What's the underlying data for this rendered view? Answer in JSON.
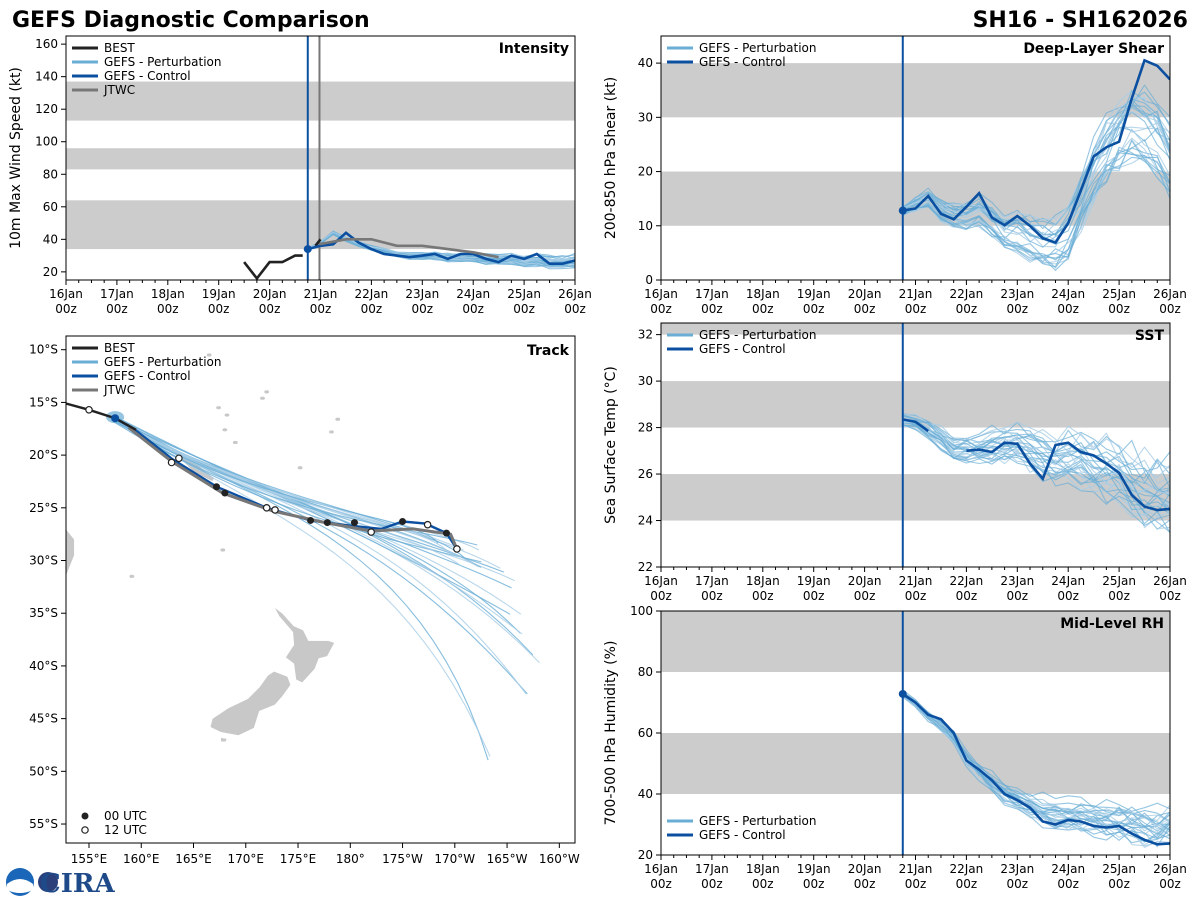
{
  "header": {
    "title": "GEFS Diagnostic Comparison",
    "storm_id": "SH16 - SH162026"
  },
  "colors": {
    "best": "#222222",
    "perturbation": "#6aaed6",
    "perturbation_light": "#a8cde6",
    "control": "#0b4fa0",
    "jtwc": "#777777",
    "shade": "#cccccc",
    "land": "#c8c8c8"
  },
  "logo": {
    "text": "CIRA",
    "icon": "noaa-logo-icon"
  },
  "chart_data": [
    {
      "id": "intensity",
      "type": "line",
      "title": "Intensity",
      "ylabel": "10m Max Wind Speed (kt)",
      "x_labels": [
        "16Jan",
        "17Jan",
        "18Jan",
        "19Jan",
        "20Jan",
        "21Jan",
        "22Jan",
        "23Jan",
        "24Jan",
        "25Jan",
        "26Jan"
      ],
      "x_sublabel": "00z",
      "xlim": [
        0,
        10
      ],
      "ylim": [
        15,
        165
      ],
      "yticks": [
        20,
        40,
        60,
        80,
        100,
        120,
        140,
        160
      ],
      "bands": [
        [
          34,
          64
        ],
        [
          83,
          96
        ],
        [
          113,
          137
        ]
      ],
      "init_line": 4.75,
      "init_line2": 4.98,
      "init_value": 34,
      "legend": [
        "BEST",
        "GEFS - Perturbation",
        "GEFS - Control",
        "JTWC"
      ],
      "series": [
        {
          "name": "BEST",
          "x": [
            3.5,
            3.75,
            4.0,
            4.25,
            4.5,
            4.65
          ],
          "y": [
            26,
            16,
            26,
            26,
            30,
            30
          ]
        },
        {
          "name": "BEST-2",
          "x": [
            4.9,
            5.0
          ],
          "y": [
            36,
            40
          ]
        },
        {
          "name": "GEFS - Control",
          "x": [
            4.75,
            5.0,
            5.25,
            5.5,
            5.75,
            6.0,
            6.25,
            6.5,
            6.75,
            7.0,
            7.25,
            7.5,
            7.75,
            8.0,
            8.25,
            8.5,
            8.75,
            9.0,
            9.25,
            9.5,
            9.75,
            10.0
          ],
          "y": [
            34,
            36,
            37,
            44,
            38,
            34,
            31,
            30,
            29,
            30,
            31,
            28,
            31,
            31,
            28,
            26,
            30,
            28,
            31,
            25,
            25,
            27
          ]
        },
        {
          "name": "JTWC",
          "x": [
            4.98,
            5.5,
            6.0,
            6.5,
            7.0,
            7.5,
            8.0,
            8.5
          ],
          "y": [
            37,
            40,
            40,
            36,
            36,
            34,
            32,
            29
          ]
        }
      ],
      "perturbation_base": [
        34,
        38,
        44,
        40,
        37,
        35,
        33,
        31,
        30,
        30,
        30,
        29,
        29,
        29,
        28,
        28,
        28,
        27,
        27,
        26,
        26,
        27
      ],
      "perturbation_spread": 6
    },
    {
      "id": "shear",
      "type": "line",
      "title": "Deep-Layer Shear",
      "ylabel": "200-850 hPa Shear (kt)",
      "x_labels": [
        "16Jan",
        "17Jan",
        "18Jan",
        "19Jan",
        "20Jan",
        "21Jan",
        "22Jan",
        "23Jan",
        "24Jan",
        "25Jan",
        "26Jan"
      ],
      "x_sublabel": "00z",
      "xlim": [
        0,
        10
      ],
      "ylim": [
        0,
        45
      ],
      "yticks": [
        0,
        10,
        20,
        30,
        40
      ],
      "bands": [
        [
          10,
          20
        ],
        [
          30,
          40
        ]
      ],
      "init_line": 4.75,
      "init_value": 12.8,
      "legend": [
        "GEFS - Perturbation",
        "GEFS - Control"
      ],
      "series": [
        {
          "name": "GEFS - Control",
          "x": [
            4.75,
            5.0,
            5.25,
            5.5,
            5.75,
            6.0,
            6.25,
            6.5,
            6.75,
            7.0,
            7.25,
            7.5,
            7.75,
            8.0,
            8.25,
            8.5,
            8.75,
            9.0,
            9.25,
            9.5,
            9.75,
            10.0
          ],
          "y": [
            12.8,
            13.2,
            15.5,
            12.2,
            11.2,
            13.5,
            16.0,
            11.5,
            10.1,
            11.8,
            10.0,
            7.7,
            6.9,
            10.5,
            16.5,
            22.8,
            24.5,
            25.5,
            33.5,
            40.5,
            39.5,
            37.0
          ]
        }
      ],
      "perturbation_base": [
        12.8,
        14,
        15,
        13,
        12,
        12,
        13,
        11,
        9,
        9,
        8,
        7,
        7,
        9,
        14,
        20,
        24,
        27,
        29,
        28,
        26,
        22
      ],
      "perturbation_spread": 10
    },
    {
      "id": "sst",
      "type": "line",
      "title": "SST",
      "ylabel": "Sea Surface Temp (°C)",
      "x_labels": [
        "16Jan",
        "17Jan",
        "18Jan",
        "19Jan",
        "20Jan",
        "21Jan",
        "22Jan",
        "23Jan",
        "24Jan",
        "25Jan",
        "26Jan"
      ],
      "x_sublabel": "00z",
      "xlim": [
        0,
        10
      ],
      "ylim": [
        22,
        32.5
      ],
      "yticks": [
        22,
        24,
        26,
        28,
        30,
        32
      ],
      "bands": [
        [
          24,
          26
        ],
        [
          28,
          30
        ],
        [
          32,
          34
        ]
      ],
      "init_line": 4.75,
      "legend": [
        "GEFS - Perturbation",
        "GEFS - Control"
      ],
      "series": [
        {
          "name": "GEFS - Control",
          "x": [
            4.75,
            5.0,
            5.25
          ],
          "y": [
            28.35,
            28.25,
            27.85
          ]
        },
        {
          "name": "GEFS - Control-2",
          "x": [
            6.0,
            6.25,
            6.5,
            6.75,
            7.0,
            7.25,
            7.5,
            7.75,
            8.0,
            8.25,
            8.5,
            8.75,
            9.0,
            9.25,
            9.5,
            9.75,
            10.0
          ],
          "y": [
            27.0,
            27.05,
            26.95,
            27.35,
            27.3,
            26.45,
            25.8,
            27.25,
            27.35,
            26.95,
            26.8,
            26.45,
            26.05,
            25.1,
            24.6,
            24.45,
            24.5
          ]
        }
      ],
      "perturbation_base": [
        28.3,
        28.2,
        27.9,
        27.5,
        27.0,
        27.0,
        27.0,
        27.1,
        27.2,
        27.2,
        27.0,
        26.8,
        26.6,
        26.6,
        26.5,
        26.3,
        26.1,
        25.8,
        25.5,
        25.2,
        25.0,
        24.9
      ],
      "perturbation_spread": 2.6
    },
    {
      "id": "rh",
      "type": "line",
      "title": "Mid-Level RH",
      "ylabel": "700-500 hPa Humidity (%)",
      "x_labels": [
        "16Jan",
        "17Jan",
        "18Jan",
        "19Jan",
        "20Jan",
        "21Jan",
        "22Jan",
        "23Jan",
        "24Jan",
        "25Jan",
        "26Jan"
      ],
      "x_sublabel": "00z",
      "xlim": [
        0,
        10
      ],
      "ylim": [
        20,
        100
      ],
      "yticks": [
        20,
        40,
        60,
        80,
        100
      ],
      "bands": [
        [
          40,
          60
        ],
        [
          80,
          100
        ]
      ],
      "init_line": 4.75,
      "init_value": 72.8,
      "legend": [
        "GEFS - Perturbation",
        "GEFS - Control"
      ],
      "series": [
        {
          "name": "GEFS - Control",
          "x": [
            4.75,
            5.0,
            5.25,
            5.5,
            5.75,
            6.0,
            6.25,
            6.5,
            6.75,
            7.0,
            7.25,
            7.5,
            7.75,
            8.0,
            8.25,
            8.5,
            8.75,
            9.0,
            9.25,
            9.5,
            9.75,
            10.0
          ],
          "y": [
            72.8,
            70,
            66,
            64.5,
            60,
            51,
            48,
            44.5,
            40,
            38,
            35.5,
            31,
            30,
            31.5,
            31,
            29.5,
            29,
            29.5,
            27,
            25,
            23.5,
            23.8
          ]
        }
      ],
      "perturbation_base": [
        72.8,
        70,
        66,
        63,
        59,
        52,
        48,
        45,
        41,
        39,
        37,
        35,
        34,
        34,
        34,
        33,
        32,
        32,
        31,
        30,
        30,
        31
      ],
      "perturbation_spread": 12
    },
    {
      "id": "track",
      "type": "scatter",
      "title": "Track",
      "x_ticks": [
        "155°E",
        "160°E",
        "165°E",
        "170°E",
        "175°E",
        "180°",
        "175°W",
        "170°W",
        "165°W",
        "160°W"
      ],
      "x_tick_lons": [
        155,
        160,
        165,
        170,
        175,
        180,
        185,
        190,
        195,
        200
      ],
      "y_ticks": [
        "10°S",
        "15°S",
        "20°S",
        "25°S",
        "30°S",
        "35°S",
        "40°S",
        "45°S",
        "50°S",
        "55°S"
      ],
      "y_tick_lats": [
        -10,
        -15,
        -20,
        -25,
        -30,
        -35,
        -40,
        -45,
        -50,
        -55
      ],
      "xlim": [
        152.8,
        201.5
      ],
      "ylim": [
        -56.8,
        -8.7
      ],
      "legend": [
        "BEST",
        "GEFS - Perturbation",
        "GEFS - Control",
        "JTWC"
      ],
      "marker_legend": [
        "00 UTC",
        "12 UTC"
      ],
      "best_track": {
        "lon": [
          152.8,
          155.0,
          157.5,
          159.5
        ],
        "lat": [
          -15.1,
          -15.7,
          -16.5,
          -17.6
        ]
      },
      "control_track": {
        "lon": [
          157.5,
          159.4,
          163.0,
          167.2,
          172.0,
          176.2,
          180.0,
          183.0,
          185.0,
          187.2,
          189.2,
          190.2
        ],
        "lat": [
          -16.5,
          -17.6,
          -20.4,
          -23.0,
          -25.0,
          -26.2,
          -26.7,
          -27.0,
          -26.3,
          -26.5,
          -27.4,
          -28.9
        ]
      },
      "jtwc_track": {
        "lon": [
          158.8,
          162.9,
          167.8,
          172.6,
          177.6,
          182.0,
          186.0,
          189.6,
          190.2
        ],
        "lat": [
          -17.4,
          -20.6,
          -23.6,
          -25.3,
          -26.4,
          -27.2,
          -27.0,
          -27.5,
          -28.9
        ]
      },
      "markers_00z": [
        {
          "lon": 167.2,
          "lat": -23.0
        },
        {
          "lon": 176.2,
          "lat": -26.2
        },
        {
          "lon": 180.4,
          "lat": -26.4
        },
        {
          "lon": 185.0,
          "lat": -26.3
        },
        {
          "lon": 189.2,
          "lat": -27.4
        },
        {
          "lon": 168.0,
          "lat": -23.6
        },
        {
          "lon": 177.8,
          "lat": -26.4
        }
      ],
      "markers_12z": [
        {
          "lon": 155.0,
          "lat": -15.7
        },
        {
          "lon": 162.9,
          "lat": -20.7
        },
        {
          "lon": 163.6,
          "lat": -20.3
        },
        {
          "lon": 172.0,
          "lat": -25.0
        },
        {
          "lon": 172.8,
          "lat": -25.2
        },
        {
          "lon": 182.0,
          "lat": -27.3
        },
        {
          "lon": 187.4,
          "lat": -26.6
        },
        {
          "lon": 190.2,
          "lat": -28.9
        }
      ],
      "perturbation_end_points": [
        {
          "lon": 197.0,
          "lat": -43.0
        },
        {
          "lon": 198.0,
          "lat": -39.0
        },
        {
          "lon": 196.0,
          "lat": -35.0
        },
        {
          "lon": 193.5,
          "lat": -49.0
        },
        {
          "lon": 195.0,
          "lat": -32.0
        },
        {
          "lon": 192.0,
          "lat": -29.5
        },
        {
          "lon": 194.0,
          "lat": -31.0
        },
        {
          "lon": 190.5,
          "lat": -30.5
        },
        {
          "lon": 196.5,
          "lat": -37.5
        },
        {
          "lon": 193.0,
          "lat": -30.0
        },
        {
          "lon": 191.5,
          "lat": -29.0
        },
        {
          "lon": 189.0,
          "lat": -28.5
        }
      ]
    }
  ]
}
